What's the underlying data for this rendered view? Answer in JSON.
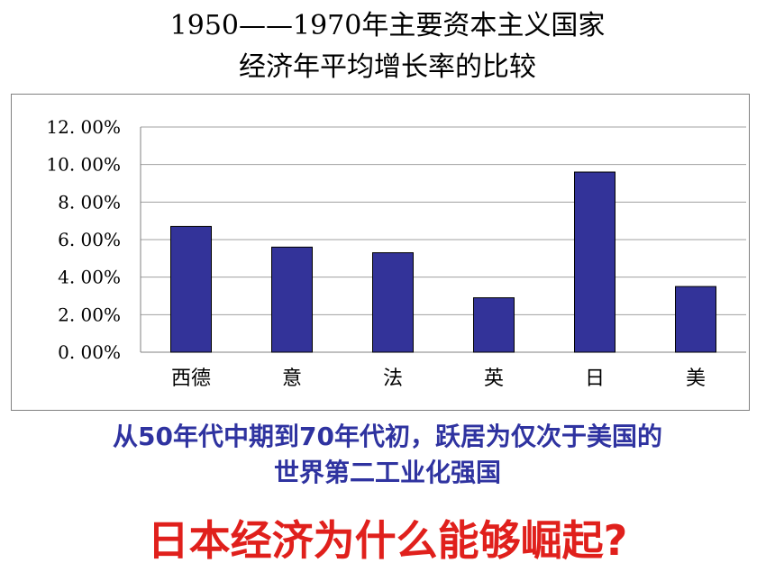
{
  "title_line1": "1950——1970年主要资本主义国家",
  "title_line2": "经济年平均增长率的比较",
  "chart_data": {
    "type": "bar",
    "categories": [
      "西德",
      "意",
      "法",
      "英",
      "日",
      "美"
    ],
    "values": [
      6.7,
      5.6,
      5.3,
      2.9,
      9.6,
      3.5
    ],
    "ylim": [
      0,
      12
    ],
    "yticks": [
      0,
      2,
      4,
      6,
      8,
      10,
      12
    ],
    "ytick_labels": [
      "0. 00%",
      "2. 00%",
      "4. 00%",
      "6. 00%",
      "8. 00%",
      "10. 00%",
      "12. 00%"
    ],
    "grid": true,
    "legend": "none",
    "bar_color": "#333399"
  },
  "subtitle_line1": "从50年代中期到70年代初，跃居为仅次于美国的",
  "subtitle_line2": "世界第二工业化强国",
  "question": "日本经济为什么能够崛起?",
  "colors": {
    "subtitle": "#2f33a0",
    "question": "#e0201c",
    "bar": "#333399"
  }
}
